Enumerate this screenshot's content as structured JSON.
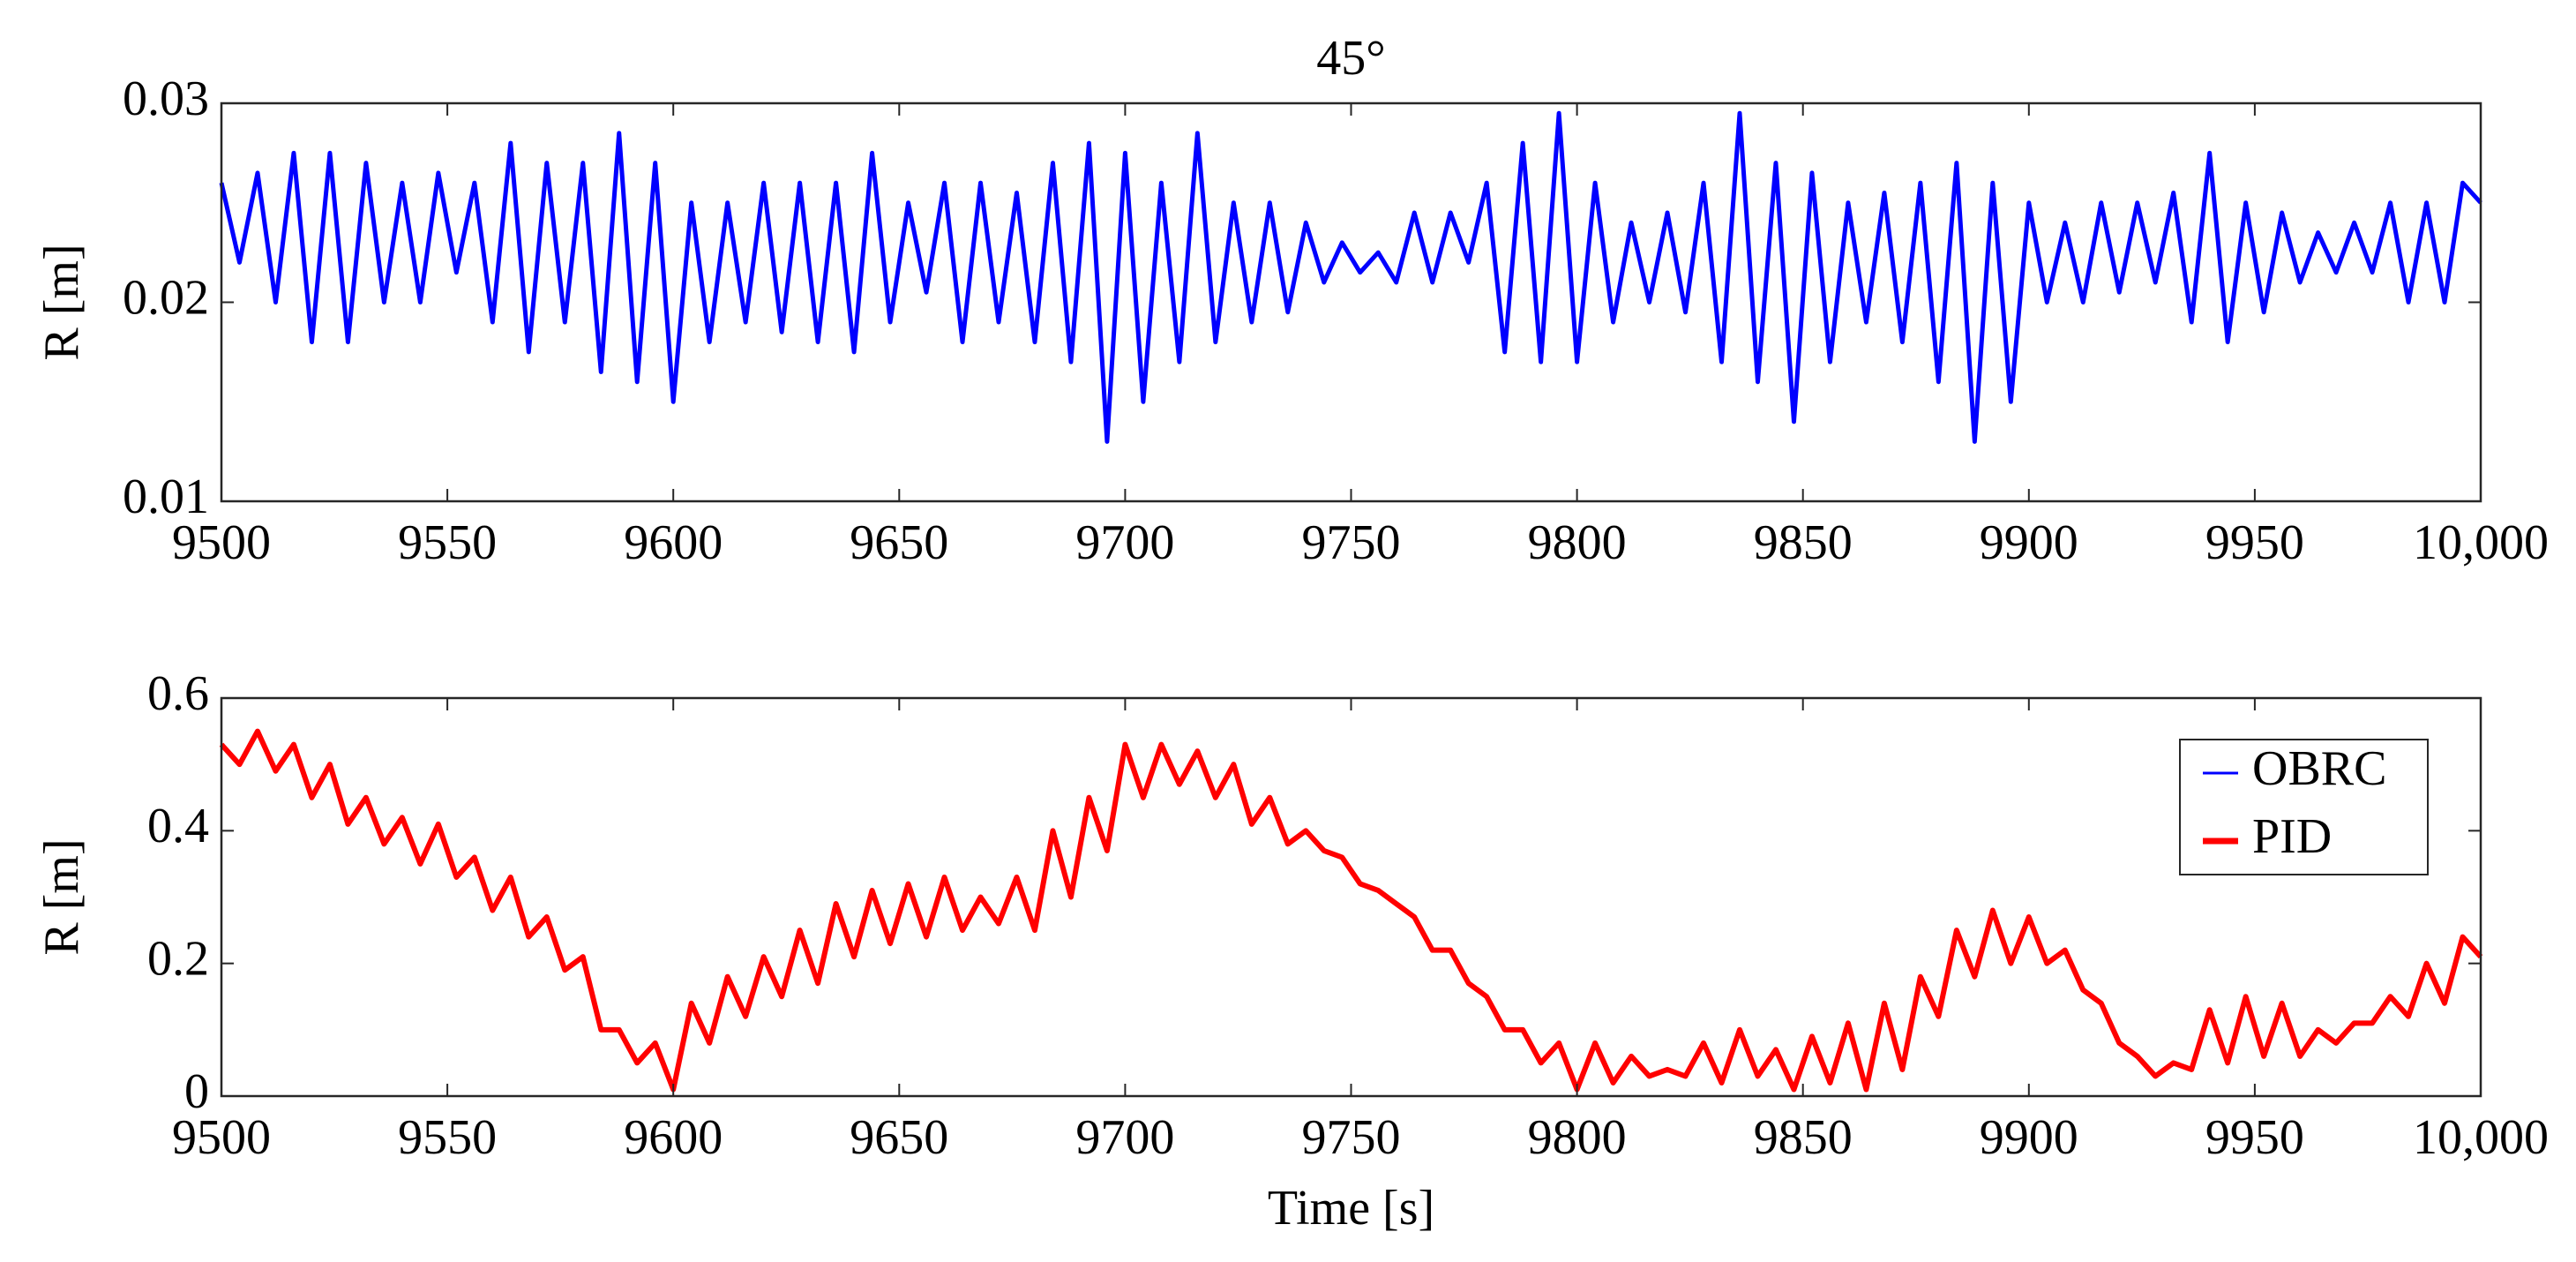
{
  "chart_data": [
    {
      "type": "line",
      "title": "45°",
      "ylabel": "R [m]",
      "x": [
        9500,
        9504,
        9508,
        9512,
        9516,
        9520,
        9524,
        9528,
        9532,
        9536,
        9540,
        9544,
        9548,
        9552,
        9556,
        9560,
        9564,
        9568,
        9572,
        9576,
        9580,
        9584,
        9588,
        9592,
        9596,
        9600,
        9604,
        9608,
        9612,
        9616,
        9620,
        9624,
        9628,
        9632,
        9636,
        9640,
        9644,
        9648,
        9652,
        9656,
        9660,
        9664,
        9668,
        9672,
        9676,
        9680,
        9684,
        9688,
        9692,
        9696,
        9700,
        9704,
        9708,
        9712,
        9716,
        9720,
        9724,
        9728,
        9732,
        9736,
        9740,
        9744,
        9748,
        9752,
        9756,
        9760,
        9764,
        9768,
        9772,
        9776,
        9780,
        9784,
        9788,
        9792,
        9796,
        9800,
        9804,
        9808,
        9812,
        9816,
        9820,
        9824,
        9828,
        9832,
        9836,
        9840,
        9844,
        9848,
        9852,
        9856,
        9860,
        9864,
        9868,
        9872,
        9876,
        9880,
        9884,
        9888,
        9892,
        9896,
        9900,
        9904,
        9908,
        9912,
        9916,
        9920,
        9924,
        9928,
        9932,
        9936,
        9940,
        9944,
        9948,
        9952,
        9956,
        9960,
        9964,
        9968,
        9972,
        9976,
        9980,
        9984,
        9988,
        9992,
        9996,
        10000
      ],
      "series": [
        {
          "name": "OBRC",
          "color": "#0000ff",
          "values": [
            0.026,
            0.022,
            0.0265,
            0.02,
            0.0275,
            0.018,
            0.0275,
            0.018,
            0.027,
            0.02,
            0.026,
            0.02,
            0.0265,
            0.0215,
            0.026,
            0.019,
            0.028,
            0.0175,
            0.027,
            0.019,
            0.027,
            0.0165,
            0.0285,
            0.016,
            0.027,
            0.015,
            0.025,
            0.018,
            0.025,
            0.019,
            0.026,
            0.0185,
            0.026,
            0.018,
            0.026,
            0.0175,
            0.0275,
            0.019,
            0.025,
            0.0205,
            0.026,
            0.018,
            0.026,
            0.019,
            0.0255,
            0.018,
            0.027,
            0.017,
            0.028,
            0.013,
            0.0275,
            0.015,
            0.026,
            0.017,
            0.0285,
            0.018,
            0.025,
            0.019,
            0.025,
            0.0195,
            0.024,
            0.021,
            0.023,
            0.0215,
            0.0225,
            0.021,
            0.0245,
            0.021,
            0.0245,
            0.022,
            0.026,
            0.0175,
            0.028,
            0.017,
            0.0295,
            0.017,
            0.026,
            0.019,
            0.024,
            0.02,
            0.0245,
            0.0195,
            0.026,
            0.017,
            0.0295,
            0.016,
            0.027,
            0.014,
            0.0265,
            0.017,
            0.025,
            0.019,
            0.0255,
            0.018,
            0.026,
            0.016,
            0.027,
            0.013,
            0.026,
            0.015,
            0.025,
            0.02,
            0.024,
            0.02,
            0.025,
            0.0205,
            0.025,
            0.021,
            0.0255,
            0.019,
            0.0275,
            0.018,
            0.025,
            0.0195,
            0.0245,
            0.021,
            0.0235,
            0.0215,
            0.024,
            0.0215,
            0.025,
            0.02,
            0.025,
            0.02,
            0.026,
            0.025
          ]
        }
      ],
      "xlim": [
        9500,
        10000
      ],
      "xticks": [
        9500,
        9550,
        9600,
        9650,
        9700,
        9750,
        9800,
        9850,
        9900,
        9950,
        {
          "value": 10000,
          "label": "10,000"
        }
      ],
      "ylim": [
        0.01,
        0.03
      ],
      "yticks": [
        0.01,
        0.02,
        0.03
      ]
    },
    {
      "type": "line",
      "ylabel": "R [m]",
      "xlabel": "Time [s]",
      "legend": "upper right",
      "x": [
        9500,
        9504,
        9508,
        9512,
        9516,
        9520,
        9524,
        9528,
        9532,
        9536,
        9540,
        9544,
        9548,
        9552,
        9556,
        9560,
        9564,
        9568,
        9572,
        9576,
        9580,
        9584,
        9588,
        9592,
        9596,
        9600,
        9604,
        9608,
        9612,
        9616,
        9620,
        9624,
        9628,
        9632,
        9636,
        9640,
        9644,
        9648,
        9652,
        9656,
        9660,
        9664,
        9668,
        9672,
        9676,
        9680,
        9684,
        9688,
        9692,
        9696,
        9700,
        9704,
        9708,
        9712,
        9716,
        9720,
        9724,
        9728,
        9732,
        9736,
        9740,
        9744,
        9748,
        9752,
        9756,
        9760,
        9764,
        9768,
        9772,
        9776,
        9780,
        9784,
        9788,
        9792,
        9796,
        9800,
        9804,
        9808,
        9812,
        9816,
        9820,
        9824,
        9828,
        9832,
        9836,
        9840,
        9844,
        9848,
        9852,
        9856,
        9860,
        9864,
        9868,
        9872,
        9876,
        9880,
        9884,
        9888,
        9892,
        9896,
        9900,
        9904,
        9908,
        9912,
        9916,
        9920,
        9924,
        9928,
        9932,
        9936,
        9940,
        9944,
        9948,
        9952,
        9956,
        9960,
        9964,
        9968,
        9972,
        9976,
        9980,
        9984,
        9988,
        9992,
        9996,
        10000
      ],
      "series": [
        {
          "name": "PID",
          "color": "#ff0000",
          "values": [
            0.53,
            0.5,
            0.55,
            0.49,
            0.53,
            0.45,
            0.5,
            0.41,
            0.45,
            0.38,
            0.42,
            0.35,
            0.41,
            0.33,
            0.36,
            0.28,
            0.33,
            0.24,
            0.27,
            0.19,
            0.21,
            0.1,
            0.1,
            0.05,
            0.08,
            0.01,
            0.14,
            0.08,
            0.18,
            0.12,
            0.21,
            0.15,
            0.25,
            0.17,
            0.29,
            0.21,
            0.31,
            0.23,
            0.32,
            0.24,
            0.33,
            0.25,
            0.3,
            0.26,
            0.33,
            0.25,
            0.4,
            0.3,
            0.45,
            0.37,
            0.53,
            0.45,
            0.53,
            0.47,
            0.52,
            0.45,
            0.5,
            0.41,
            0.45,
            0.38,
            0.4,
            0.37,
            0.36,
            0.32,
            0.31,
            0.29,
            0.27,
            0.22,
            0.22,
            0.17,
            0.15,
            0.1,
            0.1,
            0.05,
            0.08,
            0.01,
            0.08,
            0.02,
            0.06,
            0.03,
            0.04,
            0.03,
            0.08,
            0.02,
            0.1,
            0.03,
            0.07,
            0.01,
            0.09,
            0.02,
            0.11,
            0.01,
            0.14,
            0.04,
            0.18,
            0.12,
            0.25,
            0.18,
            0.28,
            0.2,
            0.27,
            0.2,
            0.22,
            0.16,
            0.14,
            0.08,
            0.06,
            0.03,
            0.05,
            0.04,
            0.13,
            0.05,
            0.15,
            0.06,
            0.14,
            0.06,
            0.1,
            0.08,
            0.11,
            0.11,
            0.15,
            0.12,
            0.2,
            0.14,
            0.24,
            0.21
          ]
        }
      ],
      "xlim": [
        9500,
        10000
      ],
      "xticks": [
        9500,
        9550,
        9600,
        9650,
        9700,
        9750,
        9800,
        9850,
        9900,
        9950,
        {
          "value": 10000,
          "label": "10,000"
        }
      ],
      "ylim": [
        0,
        0.6
      ],
      "yticks": [
        0,
        0.2,
        0.4,
        0.6
      ]
    }
  ]
}
